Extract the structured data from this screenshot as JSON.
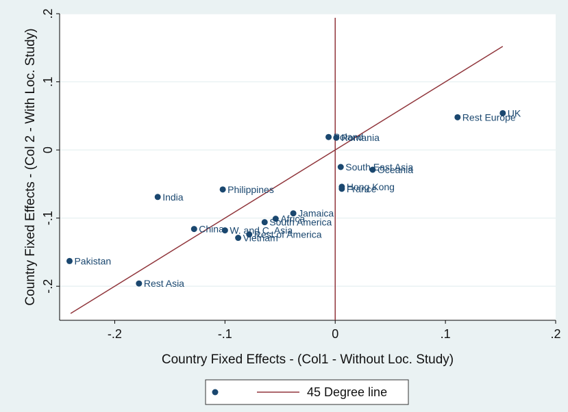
{
  "chart_data": {
    "type": "scatter",
    "title": "",
    "xlabel": "Country Fixed Effects - (Col1 - Without Loc. Study)",
    "ylabel": "Country Fixed Effects - (Col 2 - With Loc. Study)",
    "xlim": [
      -0.25,
      0.2
    ],
    "ylim": [
      -0.25,
      0.2
    ],
    "xticks": [
      {
        "value": -0.2,
        "label": "-.2"
      },
      {
        "value": -0.1,
        "label": "-.1"
      },
      {
        "value": 0,
        "label": "0"
      },
      {
        "value": 0.1,
        "label": ".1"
      },
      {
        "value": 0.2,
        "label": ".2"
      }
    ],
    "yticks": [
      {
        "value": -0.2,
        "label": "-.2"
      },
      {
        "value": -0.1,
        "label": "-.1"
      },
      {
        "value": 0,
        "label": "0"
      },
      {
        "value": 0.1,
        "label": ".1"
      },
      {
        "value": 0.2,
        "label": ".2"
      }
    ],
    "grid": true,
    "points": [
      {
        "label": "UK",
        "x": 0.152,
        "y": 0.054
      },
      {
        "label": "Rest Europe",
        "x": 0.111,
        "y": 0.048
      },
      {
        "label": "Poland",
        "x": -0.006,
        "y": 0.019
      },
      {
        "label": "Romania",
        "x": 0.001,
        "y": 0.018
      },
      {
        "label": "South East Asia",
        "x": 0.005,
        "y": -0.025
      },
      {
        "label": "Oceania",
        "x": 0.034,
        "y": -0.029
      },
      {
        "label": "Hong Kong",
        "x": 0.006,
        "y": -0.054
      },
      {
        "label": "France",
        "x": 0.006,
        "y": -0.057
      },
      {
        "label": "India",
        "x": -0.161,
        "y": -0.069
      },
      {
        "label": "Philippines",
        "x": -0.102,
        "y": -0.058
      },
      {
        "label": "Jamaica",
        "x": -0.038,
        "y": -0.093
      },
      {
        "label": "Africa",
        "x": -0.054,
        "y": -0.101
      },
      {
        "label": "South America",
        "x": -0.064,
        "y": -0.106
      },
      {
        "label": "China",
        "x": -0.128,
        "y": -0.116
      },
      {
        "label": "W. and C. Asia",
        "x": -0.1,
        "y": -0.118
      },
      {
        "label": "Rest of America",
        "x": -0.078,
        "y": -0.124
      },
      {
        "label": "Vietnam",
        "x": -0.088,
        "y": -0.129
      },
      {
        "label": "Pakistan",
        "x": -0.241,
        "y": -0.163
      },
      {
        "label": "Rest Asia",
        "x": -0.178,
        "y": -0.196
      }
    ],
    "reference_line": {
      "name": "45 Degree line",
      "x": [
        -0.24,
        0.152
      ],
      "y": [
        -0.24,
        0.152
      ]
    },
    "vertical_line": {
      "x": 0
    },
    "legend": {
      "position": "bottom",
      "items": [
        "",
        "45 Degree line"
      ]
    },
    "colors": {
      "marker": "#1a476f",
      "line": "#90353b",
      "grid": "#eaf2f3",
      "background": "#eaf2f3",
      "plot_background": "#ffffff"
    }
  }
}
